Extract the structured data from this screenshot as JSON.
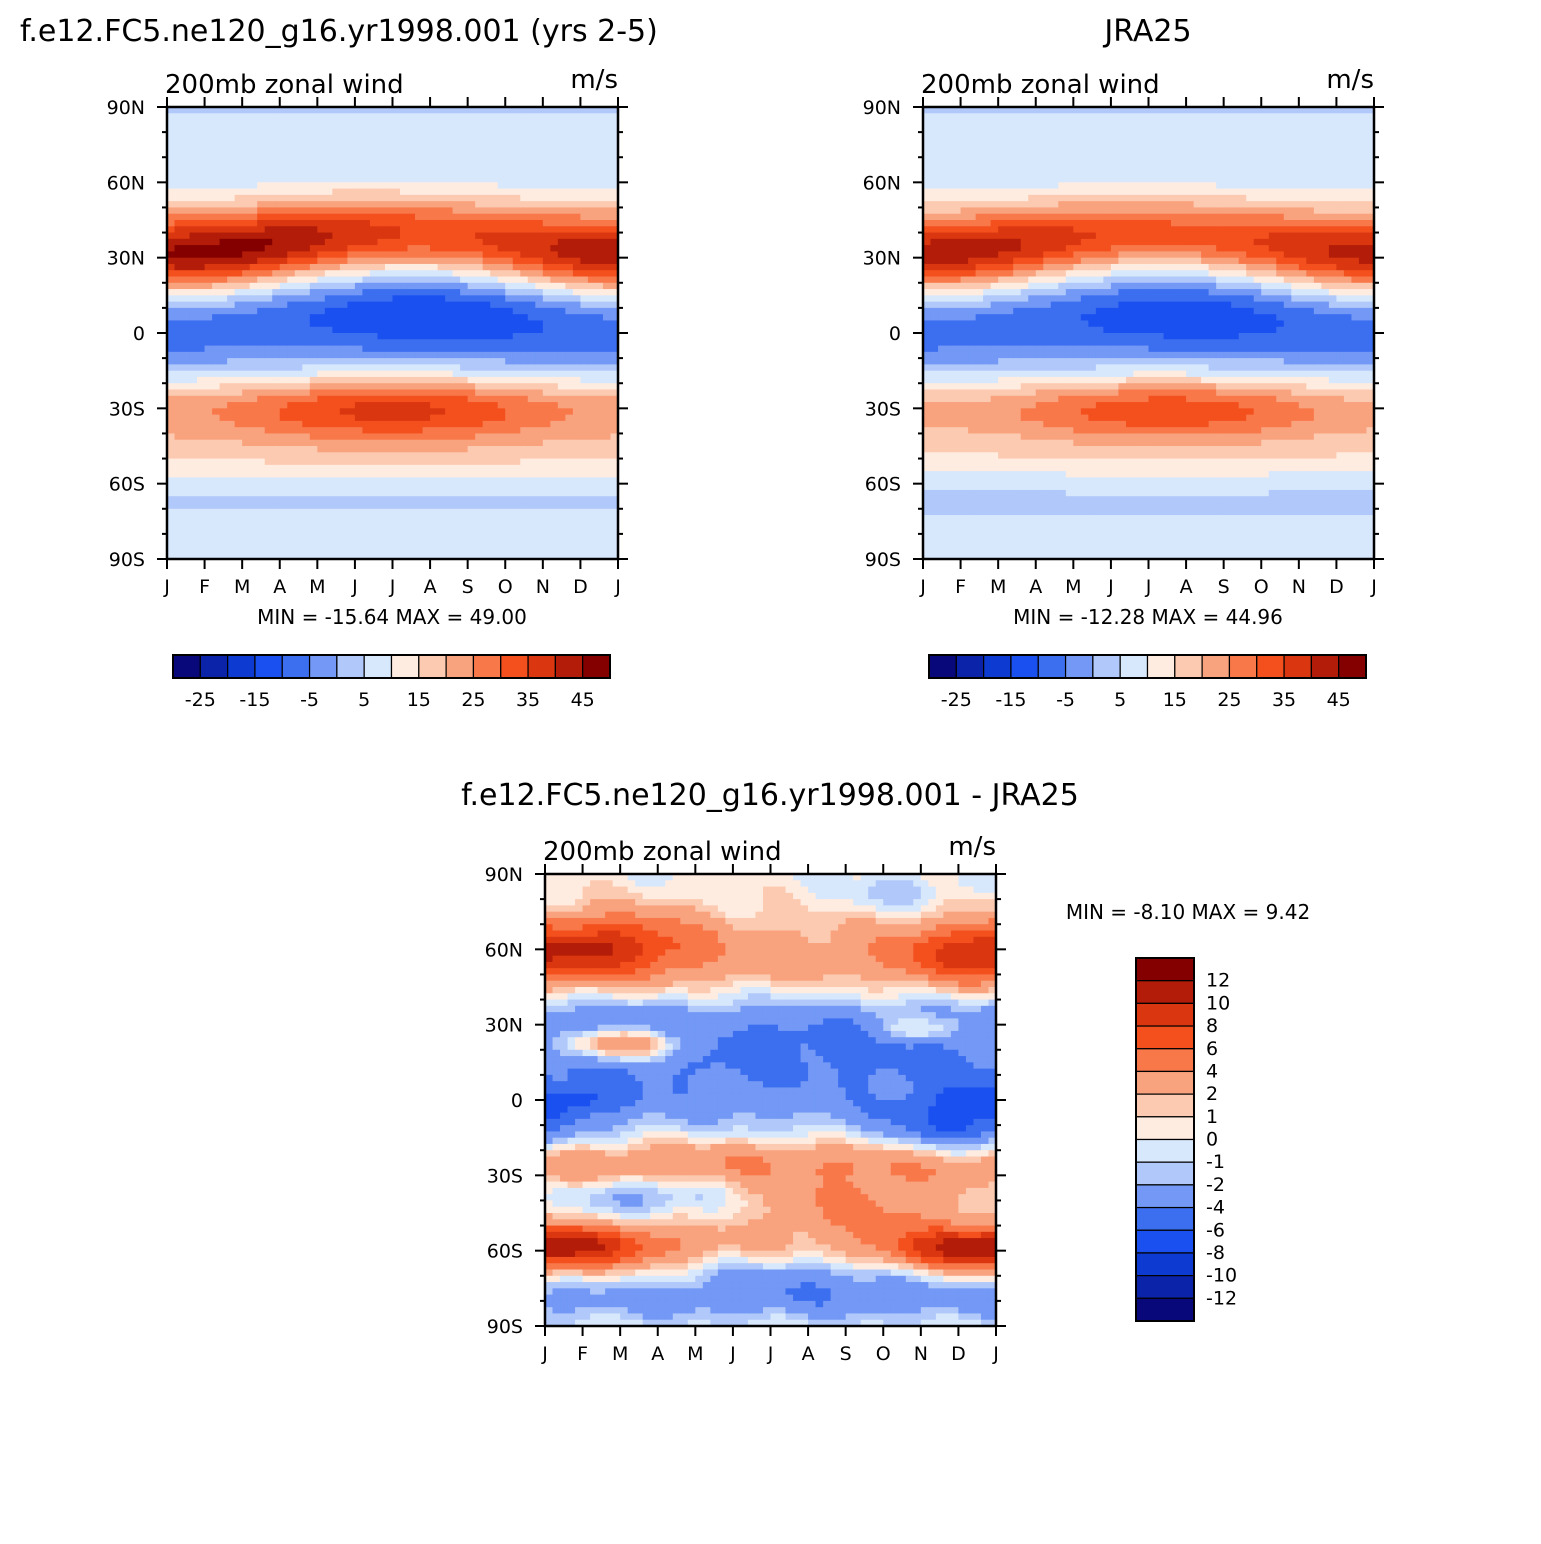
{
  "chart_data": [
    {
      "type": "heatmap",
      "title": "f.e12.FC5.ne120_g16.yr1998.001 (yrs 2-5)",
      "left_label": "200mb zonal wind",
      "right_label": "m/s",
      "stats": "MIN = -15.64 MAX = 49.00",
      "x_tick_labels": [
        "J",
        "F",
        "M",
        "A",
        "M",
        "J",
        "J",
        "A",
        "S",
        "O",
        "N",
        "D",
        "J"
      ],
      "y_tick_labels": [
        "90N",
        "60N",
        "30N",
        "0",
        "30S",
        "60S",
        "90S"
      ],
      "ylim": [
        -90,
        90
      ],
      "colorbar_labels": [
        "-25",
        "-15",
        "-5",
        "5",
        "15",
        "25",
        "35",
        "45"
      ],
      "colorbar_levels": [
        -30,
        -25,
        -20,
        -15,
        -10,
        -5,
        0,
        5,
        10,
        15,
        20,
        25,
        30,
        35,
        40,
        45,
        50
      ],
      "approx_field": {
        "lat_30N_peak_month": 1.0,
        "lat_30N_peak": 49.0,
        "lat_30S_peak_month": 6.0,
        "lat_30S_peak": 45,
        "eq_min_month": 7.0,
        "eq_min": -15.64
      }
    },
    {
      "type": "heatmap",
      "title": "JRA25",
      "left_label": "200mb zonal wind",
      "right_label": "m/s",
      "stats": "MIN = -12.28 MAX = 44.96",
      "x_tick_labels": [
        "J",
        "F",
        "M",
        "A",
        "M",
        "J",
        "J",
        "A",
        "S",
        "O",
        "N",
        "D",
        "J"
      ],
      "y_tick_labels": [
        "90N",
        "60N",
        "30N",
        "0",
        "30S",
        "60S",
        "90S"
      ],
      "ylim": [
        -90,
        90
      ],
      "colorbar_labels": [
        "-25",
        "-15",
        "-5",
        "5",
        "15",
        "25",
        "35",
        "45"
      ],
      "colorbar_levels": [
        -30,
        -25,
        -20,
        -15,
        -10,
        -5,
        0,
        5,
        10,
        15,
        20,
        25,
        30,
        35,
        40,
        45,
        50
      ],
      "approx_field": {
        "lat_30N_peak_month": 0.5,
        "lat_30N_peak": 44.96,
        "lat_30S_peak_month": 6.5,
        "lat_30S_peak": 42,
        "eq_min_month": 7.0,
        "eq_min": -12.28
      }
    },
    {
      "type": "heatmap",
      "title": "f.e12.FC5.ne120_g16.yr1998.001 - JRA25",
      "left_label": "200mb zonal wind",
      "right_label": "m/s",
      "stats": "MIN = -8.10 MAX = 9.42",
      "x_tick_labels": [
        "J",
        "F",
        "M",
        "A",
        "M",
        "J",
        "J",
        "A",
        "S",
        "O",
        "N",
        "D",
        "J"
      ],
      "y_tick_labels": [
        "90N",
        "60N",
        "30N",
        "0",
        "30S",
        "60S",
        "90S"
      ],
      "ylim": [
        -90,
        90
      ],
      "colorbar_labels": [
        "12",
        "10",
        "8",
        "6",
        "4",
        "2",
        "1",
        "0",
        "-1",
        "-2",
        "-4",
        "-6",
        "-8",
        "-10",
        "-12"
      ],
      "colorbar_levels": [
        -14,
        -12,
        -10,
        -8,
        -6,
        -4,
        -2,
        -1,
        0,
        1,
        2,
        4,
        6,
        8,
        10,
        12,
        14
      ]
    }
  ],
  "colors": {
    "palette": [
      "#08087a",
      "#0a23a8",
      "#0d3ad0",
      "#1a50f0",
      "#3c6ef0",
      "#7398f5",
      "#b0c8fa",
      "#d8e8fc",
      "#ffece0",
      "#fccab0",
      "#f9a27e",
      "#f8784a",
      "#f4501e",
      "#da3610",
      "#b21c08",
      "#840000"
    ]
  }
}
